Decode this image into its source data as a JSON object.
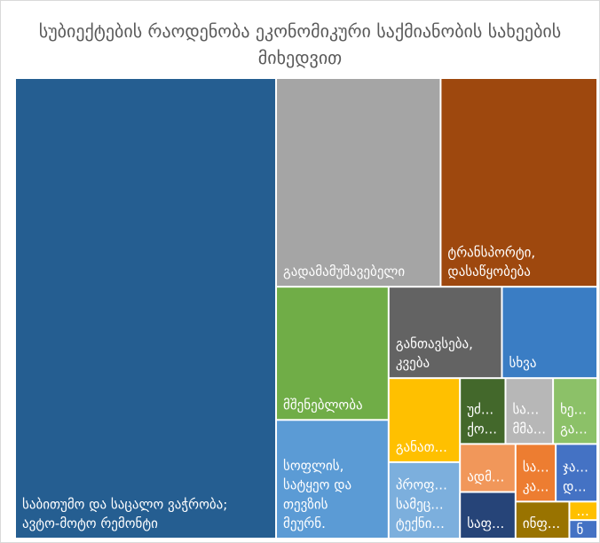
{
  "chart_data": {
    "type": "treemap",
    "title": "სუბიექტების რაოდენობა ეკონომიკური საქმიანობის სახეების მიხედვით",
    "categories": [
      "საბითუმო და საცალო ვაჭრობა;\nავტო-მოტო რემონტი",
      "გადამამუშავებელი",
      "ტრანსპორტი,\nდასაწყობება",
      "მშენებლობა",
      "სოფლის,\nსატყეო და\nთევზის\nმეურნ.",
      "განთავსება,\nკვება",
      "სხვა",
      "განათ...",
      "პროფ...\nსამეც...\nტექნი...",
      "უძ...\nქო...",
      "სა...\nმმა...",
      "ხე...\nგა...",
      "ადმ...",
      "საფ...",
      "სა...\nკა...",
      "ჯა...\nდ...",
      "ინფ...",
      "...",
      "ნ"
    ],
    "values": [
      44.1,
      12.6,
      12.0,
      5.5,
      4.9,
      3.8,
      3.2,
      2.2,
      2.0,
      1.1,
      1.15,
      1.07,
      0.98,
      0.95,
      0.85,
      0.88,
      0.73,
      0.19,
      0.19
    ],
    "colors": [
      "#255e91",
      "#a5a5a5",
      "#9e480e",
      "#70ad47",
      "#5b9bd5",
      "#636363",
      "#3a7dc4",
      "#ffc000",
      "#7cafdd",
      "#43682b",
      "#b7b7b7",
      "#8cc168",
      "#f1975a",
      "#264478",
      "#ed7d31",
      "#4472c4",
      "#997300",
      "#ffc000",
      "#4472c4"
    ]
  }
}
